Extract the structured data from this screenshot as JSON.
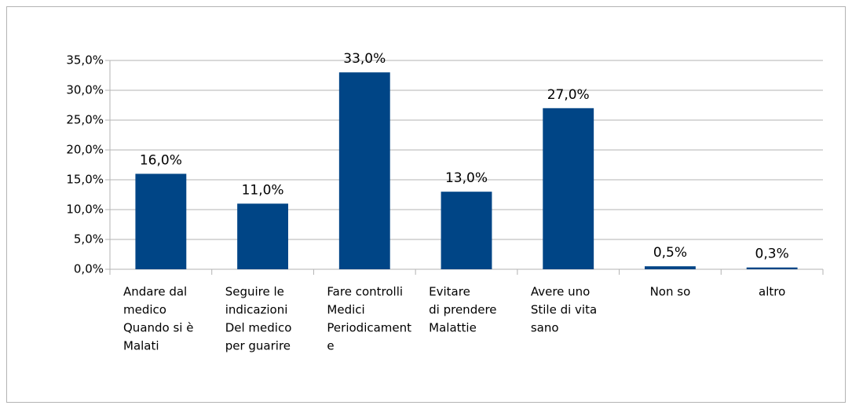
{
  "chart_data": {
    "type": "bar",
    "categories": [
      [
        "Andare dal",
        "medico",
        "Quando si è",
        "Malati"
      ],
      [
        "Seguire le",
        "indicazioni",
        "Del medico",
        "per guarire"
      ],
      [
        "Fare controlli",
        "Medici",
        "Periodicament",
        "e"
      ],
      [
        "Evitare",
        "di prendere",
        "Malattie"
      ],
      [
        "Avere uno",
        "Stile di vita",
        "sano"
      ],
      [
        "Non so"
      ],
      [
        "altro"
      ]
    ],
    "values": [
      16,
      11,
      33,
      13,
      27,
      0.5,
      0.3
    ],
    "value_labels": [
      "16,0%",
      "11,0%",
      "33,0%",
      "13,0%",
      "27,0%",
      "0,5%",
      "0,3%"
    ],
    "color": "#004586",
    "ylim": [
      0,
      35
    ],
    "yticks": [
      {
        "value": 0,
        "label": "0,0%"
      },
      {
        "value": 5,
        "label": "5,0%"
      },
      {
        "value": 10,
        "label": "10,0%"
      },
      {
        "value": 15,
        "label": "15,0%"
      },
      {
        "value": 20,
        "label": "20,0%"
      },
      {
        "value": 25,
        "label": "25,0%"
      },
      {
        "value": 30,
        "label": "30,0%"
      },
      {
        "value": 35,
        "label": "35,0%"
      }
    ],
    "grid": true
  }
}
